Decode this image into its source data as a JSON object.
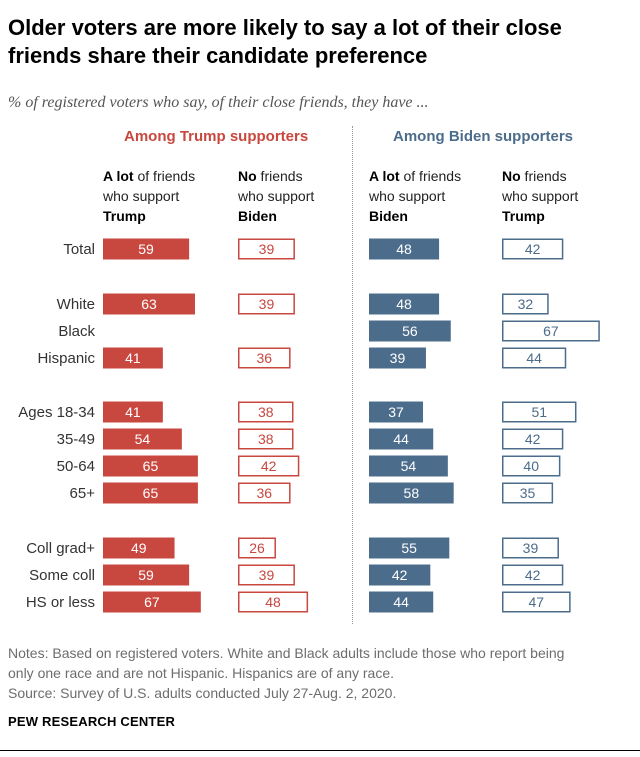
{
  "header": {
    "title_line1": "Older voters are more likely to say a lot of their close",
    "title_line2": "friends share their candidate preference",
    "subtitle": "% of registered voters who say, of their close friends, they have ..."
  },
  "colors": {
    "trump": "#c8473f",
    "biden": "#4c6c8b",
    "text": "#333333"
  },
  "sections": {
    "trump": "Among Trump supporters",
    "biden": "Among Biden supporters"
  },
  "columns": [
    {
      "bold1": "A lot",
      "rest1": " of friends",
      "line2": "who support",
      "bold3": "Trump"
    },
    {
      "bold1": "No",
      "rest1": " friends",
      "line2": "who support",
      "bold3": "Biden"
    },
    {
      "bold1": "A lot",
      "rest1": " of friends",
      "line2": "who support",
      "bold3": "Biden"
    },
    {
      "bold1": "No",
      "rest1": " friends",
      "line2": "who support",
      "bold3": "Trump"
    }
  ],
  "chart_data": {
    "type": "bar",
    "title": "Older voters are more likely to say a lot of their close friends share their candidate preference",
    "subtitle": "% of registered voters who say, of their close friends, they have ...",
    "categories": [
      "Total",
      "White",
      "Black",
      "Hispanic",
      "Ages 18-34",
      "35-49",
      "50-64",
      "65+",
      "Coll grad+",
      "Some coll",
      "HS or less"
    ],
    "series": [
      {
        "name": "Among Trump supporters: A lot of friends who support Trump",
        "style": "filled",
        "color": "#c8473f",
        "values": [
          59,
          63,
          null,
          41,
          41,
          54,
          65,
          65,
          49,
          59,
          67
        ]
      },
      {
        "name": "Among Trump supporters: No friends who support Biden",
        "style": "outline",
        "color": "#c8473f",
        "values": [
          39,
          39,
          null,
          36,
          38,
          38,
          42,
          36,
          26,
          39,
          48
        ]
      },
      {
        "name": "Among Biden supporters: A lot of friends who support Biden",
        "style": "filled",
        "color": "#4c6c8b",
        "values": [
          48,
          48,
          56,
          39,
          37,
          44,
          54,
          58,
          55,
          42,
          44
        ]
      },
      {
        "name": "Among Biden supporters: No friends who support Trump",
        "style": "outline",
        "color": "#4c6c8b",
        "values": [
          42,
          32,
          67,
          44,
          51,
          42,
          40,
          35,
          39,
          42,
          47
        ]
      }
    ]
  },
  "footer": {
    "notes_line1": "Notes: Based on registered voters. White and Black adults include those who report being",
    "notes_line2": "only one race and are not Hispanic. Hispanics are of any race.",
    "source": "Source: Survey of U.S. adults conducted July 27-Aug. 2, 2020.",
    "brand": "PEW RESEARCH CENTER"
  }
}
